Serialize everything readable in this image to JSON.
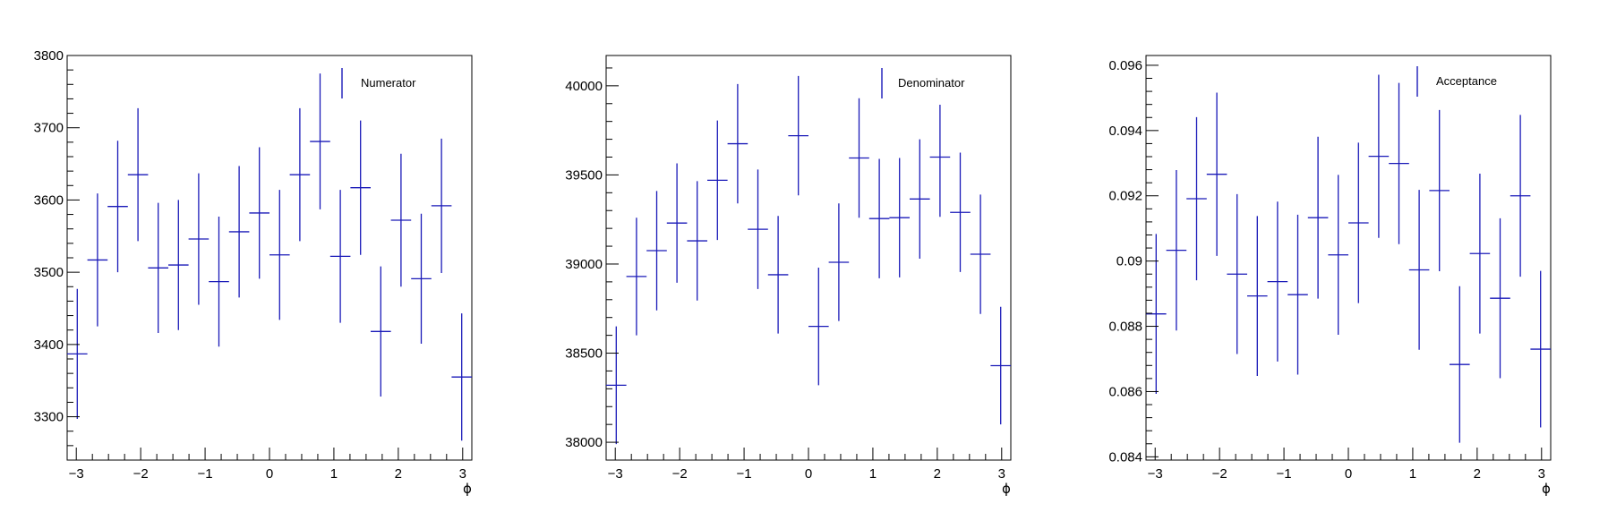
{
  "colors": {
    "series": "#1a1ab8",
    "axis": "#000000",
    "frame": "#000000"
  },
  "chart_data": [
    {
      "type": "errorbar",
      "legend": "Numerator",
      "legend_position": "top-right",
      "xlabel": "ϕ",
      "xlim": [
        -3.142,
        3.142
      ],
      "ylim": [
        3240,
        3800
      ],
      "xticks": [
        -3,
        -2,
        -1,
        0,
        1,
        2,
        3
      ],
      "xtick_labels": [
        "−3",
        "−2",
        "−1",
        "0",
        "1",
        "2",
        "3"
      ],
      "yticks": [
        3300,
        3400,
        3500,
        3600,
        3700,
        3800
      ],
      "ytick_labels": [
        "3300",
        "3400",
        "3500",
        "3600",
        "3700",
        "3800"
      ],
      "grid": false,
      "bins": 20,
      "values": [
        3387,
        3517,
        3591,
        3635,
        3506,
        3510,
        3546,
        3487,
        3556,
        3582,
        3524,
        3635,
        3681,
        3522,
        3617,
        3418,
        3572,
        3491,
        3592,
        3355
      ],
      "errors": [
        90,
        92,
        91,
        92,
        90,
        90,
        91,
        90,
        91,
        91,
        90,
        92,
        94,
        92,
        93,
        90,
        92,
        90,
        93,
        88
      ]
    },
    {
      "type": "errorbar",
      "legend": "Denominator",
      "legend_position": "top-right",
      "xlabel": "ϕ",
      "xlim": [
        -3.142,
        3.142
      ],
      "ylim": [
        37900,
        40170
      ],
      "xticks": [
        -3,
        -2,
        -1,
        0,
        1,
        2,
        3
      ],
      "xtick_labels": [
        "−3",
        "−2",
        "−1",
        "0",
        "1",
        "2",
        "3"
      ],
      "yticks": [
        38000,
        38500,
        39000,
        39500,
        40000
      ],
      "ytick_labels": [
        "38000",
        "38500",
        "39000",
        "39500",
        "40000"
      ],
      "grid": false,
      "bins": 20,
      "values": [
        38320,
        38930,
        39075,
        39230,
        39130,
        39470,
        39675,
        39195,
        38940,
        39720,
        38650,
        39010,
        39595,
        39255,
        39260,
        39365,
        39600,
        39290,
        39055,
        38430
      ],
      "errors": [
        330,
        330,
        335,
        335,
        335,
        335,
        335,
        335,
        330,
        335,
        330,
        330,
        335,
        335,
        335,
        335,
        335,
        335,
        335,
        330
      ]
    },
    {
      "type": "errorbar",
      "legend": "Acceptance",
      "legend_position": "top-right",
      "xlabel": "ϕ",
      "xlim": [
        -3.142,
        3.142
      ],
      "ylim": [
        0.0839,
        0.0963
      ],
      "xticks": [
        -3,
        -2,
        -1,
        0,
        1,
        2,
        3
      ],
      "xtick_labels": [
        "−3",
        "−2",
        "−1",
        "0",
        "1",
        "2",
        "3"
      ],
      "yticks": [
        0.084,
        0.086,
        0.088,
        0.09,
        0.092,
        0.094,
        0.096
      ],
      "ytick_labels": [
        "0.084",
        "0.086",
        "0.088",
        "0.09",
        "0.092",
        "0.094",
        "0.096"
      ],
      "grid": false,
      "bins": 20,
      "values": [
        0.08838,
        0.09033,
        0.09191,
        0.09266,
        0.0896,
        0.08893,
        0.08937,
        0.08897,
        0.09133,
        0.09019,
        0.09117,
        0.09321,
        0.09299,
        0.08973,
        0.09216,
        0.08683,
        0.09023,
        0.08886,
        0.092,
        0.0873
      ],
      "errors": [
        0.00245,
        0.00246,
        0.0025,
        0.0025,
        0.00245,
        0.00245,
        0.00245,
        0.00245,
        0.00248,
        0.00245,
        0.00246,
        0.0025,
        0.00247,
        0.00245,
        0.00247,
        0.0024,
        0.00245,
        0.00245,
        0.00248,
        0.0024
      ]
    }
  ]
}
